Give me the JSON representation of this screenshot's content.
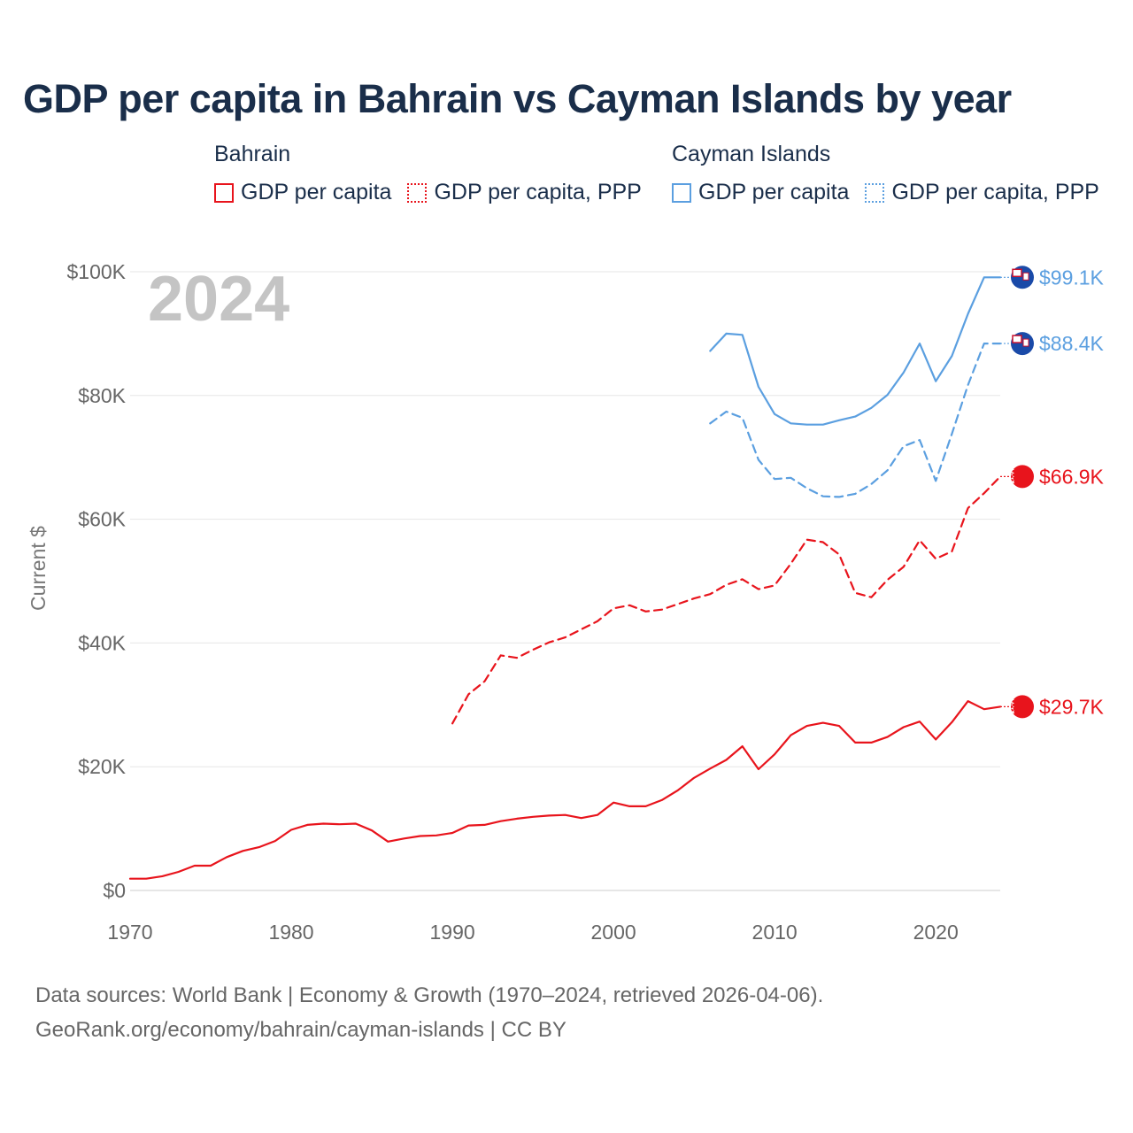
{
  "title": "GDP per capita in Bahrain vs Cayman Islands by year",
  "legend": {
    "groups": [
      {
        "name": "Bahrain",
        "color": "#e8141c",
        "items": [
          {
            "label": "GDP per capita",
            "style": "solid"
          },
          {
            "label": "GDP per capita, PPP",
            "style": "dotted"
          }
        ]
      },
      {
        "name": "Cayman Islands",
        "color": "#5b9fe0",
        "items": [
          {
            "label": "GDP per capita",
            "style": "solid"
          },
          {
            "label": "GDP per capita, PPP",
            "style": "dotted"
          }
        ]
      }
    ]
  },
  "chart_data": {
    "type": "line",
    "title": "GDP per capita in Bahrain vs Cayman Islands by year",
    "year_label": "2024",
    "ylabel": "Current $",
    "xlabel": "",
    "xlim": [
      1970,
      2024
    ],
    "ylim": [
      0,
      100000
    ],
    "x_ticks": [
      1970,
      1980,
      1990,
      2000,
      2010,
      2020
    ],
    "y_ticks": [
      {
        "value": 0,
        "label": "$0"
      },
      {
        "value": 20000,
        "label": "$20K"
      },
      {
        "value": 40000,
        "label": "$40K"
      },
      {
        "value": 60000,
        "label": "$60K"
      },
      {
        "value": 80000,
        "label": "$80K"
      },
      {
        "value": 100000,
        "label": "$100K"
      }
    ],
    "grid": true,
    "series": [
      {
        "name": "Bahrain GDP per capita",
        "country": "Bahrain",
        "color": "#e8141c",
        "dash": "solid",
        "end_label": "$29.7K",
        "x": [
          1970,
          1971,
          1972,
          1973,
          1974,
          1975,
          1976,
          1977,
          1978,
          1979,
          1980,
          1981,
          1982,
          1983,
          1984,
          1985,
          1986,
          1987,
          1988,
          1989,
          1990,
          1991,
          1992,
          1993,
          1994,
          1995,
          1996,
          1997,
          1998,
          1999,
          2000,
          2001,
          2002,
          2003,
          2004,
          2005,
          2006,
          2007,
          2008,
          2009,
          2010,
          2011,
          2012,
          2013,
          2014,
          2015,
          2016,
          2017,
          2018,
          2019,
          2020,
          2021,
          2022,
          2023,
          2024
        ],
        "values": [
          1900,
          1900,
          2300,
          3000,
          4000,
          4000,
          5400,
          6400,
          7000,
          8000,
          9800,
          10600,
          10800,
          10700,
          10800,
          9700,
          7900,
          8400,
          8800,
          8900,
          9300,
          10500,
          10600,
          11200,
          11600,
          11900,
          12100,
          12200,
          11700,
          12200,
          14200,
          13600,
          13600,
          14600,
          16200,
          18200,
          19700,
          21100,
          23300,
          19600,
          22000,
          25100,
          26600,
          27100,
          26600,
          23900,
          23900,
          24800,
          26400,
          27300,
          24400,
          27200,
          30600,
          29300,
          29700
        ]
      },
      {
        "name": "Bahrain GDP per capita, PPP",
        "country": "Bahrain",
        "color": "#e8141c",
        "dash": "dashed",
        "end_label": "$66.9K",
        "x": [
          1990,
          1991,
          1992,
          1993,
          1994,
          1995,
          1996,
          1997,
          1998,
          1999,
          2000,
          2001,
          2002,
          2003,
          2004,
          2005,
          2006,
          2007,
          2008,
          2009,
          2010,
          2011,
          2012,
          2013,
          2014,
          2015,
          2016,
          2017,
          2018,
          2019,
          2020,
          2021,
          2022,
          2023,
          2024
        ],
        "values": [
          27000,
          31700,
          33800,
          38000,
          37600,
          38900,
          40100,
          40900,
          42200,
          43500,
          45600,
          46100,
          45100,
          45400,
          46300,
          47200,
          47900,
          49400,
          50300,
          48700,
          49300,
          52800,
          56700,
          56300,
          54300,
          48100,
          47400,
          50200,
          52300,
          56600,
          53600,
          54800,
          61800,
          64200,
          66900
        ]
      },
      {
        "name": "Cayman Islands GDP per capita",
        "country": "Cayman Islands",
        "color": "#5b9fe0",
        "dash": "solid",
        "end_label": "$99.1K",
        "x": [
          2006,
          2007,
          2008,
          2009,
          2010,
          2011,
          2012,
          2013,
          2014,
          2015,
          2016,
          2017,
          2018,
          2019,
          2020,
          2021,
          2022,
          2023,
          2024
        ],
        "values": [
          87200,
          90000,
          89800,
          81400,
          77000,
          75500,
          75300,
          75300,
          76000,
          76600,
          78000,
          80100,
          83700,
          88400,
          82300,
          86400,
          93200,
          99100,
          99100
        ]
      },
      {
        "name": "Cayman Islands GDP per capita, PPP",
        "country": "Cayman Islands",
        "color": "#5b9fe0",
        "dash": "dashed",
        "end_label": "$88.4K",
        "x": [
          2006,
          2007,
          2008,
          2009,
          2010,
          2011,
          2012,
          2013,
          2014,
          2015,
          2016,
          2017,
          2018,
          2019,
          2020,
          2021,
          2022,
          2023,
          2024
        ],
        "values": [
          75500,
          77400,
          76400,
          69600,
          66500,
          66700,
          65000,
          63700,
          63600,
          64100,
          65700,
          67900,
          71800,
          72800,
          66200,
          73800,
          81700,
          88400,
          88400
        ]
      }
    ]
  },
  "source": {
    "line1": "Data sources: World Bank | Economy & Growth (1970–2024, retrieved 2026-04-06).",
    "line2": "GeoRank.org/economy/bahrain/cayman-islands | CC BY"
  }
}
